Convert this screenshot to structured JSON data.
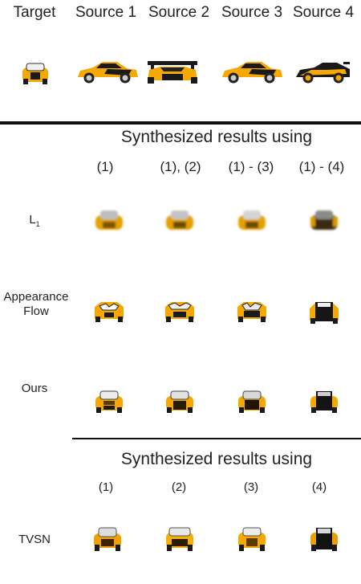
{
  "header": {
    "columns": [
      "Target",
      "Source 1",
      "Source 2",
      "Source 3",
      "Source 4"
    ]
  },
  "section1": {
    "title": "Synthesized results using",
    "columns": [
      "(1)",
      "(1), (2)",
      "(1) - (3)",
      "(1) - (4)"
    ],
    "rows": [
      {
        "label": "L",
        "label_sub": "1"
      },
      {
        "label": "Appearance Flow"
      },
      {
        "label": "Ours"
      }
    ]
  },
  "section2": {
    "title": "Synthesized results using",
    "columns": [
      "(1)",
      "(2)",
      "(3)",
      "(4)"
    ],
    "rows": [
      {
        "label": "TVSN"
      }
    ]
  },
  "colors": {
    "car_body": "#f5a800",
    "car_dark": "#1a1a1a",
    "rule": "#111111"
  }
}
